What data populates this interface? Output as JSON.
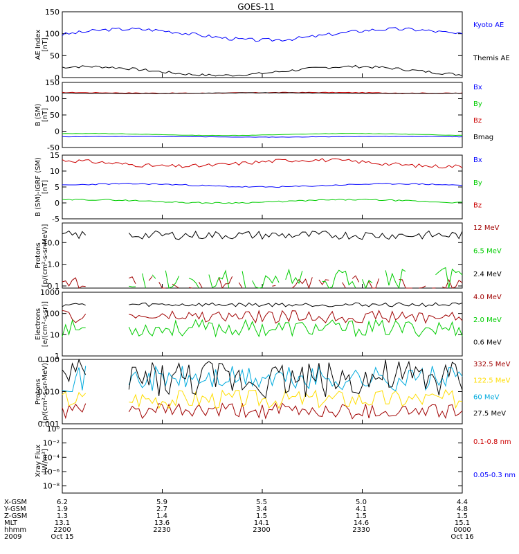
{
  "title": "GOES-11",
  "colors": {
    "black": "#000000",
    "blue": "#0000ff",
    "red": "#cc0000",
    "darkred": "#a00000",
    "green": "#00cc00",
    "cyan": "#00aadd",
    "yellow": "#ffdd00"
  },
  "chart_data": [
    {
      "type": "line",
      "panel": "ae",
      "ylabel": [
        "AE Index",
        "[nT]"
      ],
      "ylim": [
        0,
        150
      ],
      "yticks": [
        0,
        50,
        100,
        150
      ],
      "ytick_labels": [
        "0",
        "50",
        "100",
        "150"
      ],
      "series": [
        {
          "name": "Kyoto AE",
          "color": "#0000ff",
          "base": 98,
          "amp": 25,
          "noise": 4,
          "seed": 3,
          "label_ratio": 0.0
        },
        {
          "name": "Themis AE",
          "color": "#000000",
          "base": 15,
          "amp": 20,
          "noise": 3,
          "seed": 7,
          "label_ratio": 0.0
        }
      ]
    },
    {
      "type": "line",
      "panel": "bsm",
      "ylabel": [
        "B (SM)",
        "[nT]"
      ],
      "ylim": [
        -50,
        150
      ],
      "yticks": [
        -50,
        0,
        50,
        100,
        150
      ],
      "ytick_labels": [
        "-50",
        "0",
        "50",
        "100",
        "150"
      ],
      "series": [
        {
          "name": "Bx",
          "color": "#0000ff",
          "base": -17,
          "amp": 2,
          "noise": 0.5,
          "seed": 11
        },
        {
          "name": "By",
          "color": "#00cc00",
          "base": -10,
          "amp": 6,
          "noise": 0.5,
          "seed": 13
        },
        {
          "name": "Bz",
          "color": "#cc0000",
          "base": 118,
          "amp": 2,
          "noise": 1,
          "seed": 17
        },
        {
          "name": "Bmag",
          "color": "#000000",
          "base": 117,
          "amp": 2,
          "noise": 0.5,
          "seed": 19
        }
      ]
    },
    {
      "type": "line",
      "panel": "bigrf",
      "ylabel": [
        "B (SM)-IGRF (SM)",
        "[nT]"
      ],
      "ylim": [
        -5,
        15
      ],
      "yticks": [
        -5,
        0,
        5,
        10,
        15
      ],
      "ytick_labels": [
        "-5",
        "0",
        "5",
        "10",
        "15"
      ],
      "series": [
        {
          "name": "Bx",
          "color": "#0000ff",
          "base": 5.5,
          "amp": 1,
          "noise": 0.2,
          "seed": 23
        },
        {
          "name": "By",
          "color": "#00cc00",
          "base": 0.5,
          "amp": 1,
          "noise": 0.2,
          "seed": 29
        },
        {
          "name": "Bz",
          "color": "#cc0000",
          "base": 12.5,
          "amp": 2,
          "noise": 0.6,
          "seed": 31
        }
      ]
    },
    {
      "type": "line",
      "panel": "protons",
      "log": true,
      "ylabel": [
        "Protons",
        "[p/(cm²-s-sr-MeV)]"
      ],
      "ylim": [
        0.08,
        80
      ],
      "yticks": [
        0.1,
        1,
        10
      ],
      "ytick_labels": [
        "0.1",
        "1.0",
        "10.0"
      ],
      "series": [
        {
          "name": "12 MeV",
          "color": "#a00000",
          "base": 0.12,
          "amp": 0,
          "noise": 0.4,
          "seed": 37,
          "gaps": true
        },
        {
          "name": "6.5 MeV",
          "color": "#00cc00",
          "base": 0.18,
          "amp": 0,
          "noise": 0.6,
          "seed": 41,
          "gaps": true
        },
        {
          "name": "2.4 MeV",
          "color": "#000000",
          "base": 22,
          "amp": 0,
          "noise": 0.2,
          "seed": 43
        }
      ]
    },
    {
      "type": "line",
      "panel": "electrons",
      "log": true,
      "ylabel": [
        "Electrons",
        "[e/(cm²-s-sr)]"
      ],
      "ylim": [
        1,
        1000
      ],
      "yticks": [
        1,
        10,
        100,
        1000
      ],
      "ytick_labels": [
        "1",
        "10",
        "100",
        "1000"
      ],
      "series": [
        {
          "name": "4.0 MeV",
          "color": "#a00000",
          "base": 70,
          "amp": 0,
          "noise": 0.3,
          "seed": 47
        },
        {
          "name": "2.0 MeV",
          "color": "#00cc00",
          "base": 20,
          "amp": 0,
          "noise": 0.4,
          "seed": 53
        },
        {
          "name": "0.6 MeV",
          "color": "#000000",
          "base": 260,
          "amp": 0,
          "noise": 0.1,
          "seed": 59
        }
      ]
    },
    {
      "type": "line",
      "panel": "hep",
      "log": true,
      "ylabel": [
        "Protons",
        "[p/(cm²-s-sr-MeV)]"
      ],
      "ylim": [
        0.001,
        0.1
      ],
      "yticks": [
        0.001,
        0.01,
        0.1
      ],
      "ytick_labels": [
        "0.001",
        "0.010",
        "0.100"
      ],
      "series": [
        {
          "name": "332.5 MeV",
          "color": "#a00000",
          "base": 0.0025,
          "amp": 0,
          "noise": 0.25,
          "seed": 61
        },
        {
          "name": "122.5 MeV",
          "color": "#ffdd00",
          "base": 0.006,
          "amp": 0,
          "noise": 0.3,
          "seed": 67
        },
        {
          "name": "60 MeV",
          "color": "#00aadd",
          "base": 0.025,
          "amp": 0,
          "noise": 0.4,
          "seed": 71
        },
        {
          "name": "27.5 MeV",
          "color": "#000000",
          "base": 0.025,
          "amp": 0,
          "noise": 0.6,
          "seed": 73
        }
      ]
    },
    {
      "type": "line",
      "panel": "xray",
      "log": true,
      "ylabel": [
        "Xray Flux",
        "[W/m²]"
      ],
      "ylim": [
        1e-09,
        1
      ],
      "yticks": [
        1e-08,
        1e-06,
        0.0001,
        0.01,
        1
      ],
      "ytick_labels": [
        "10⁻⁸",
        "10⁻⁶",
        "10⁻⁴",
        "10⁻²",
        "10⁰"
      ],
      "series": [
        {
          "name": "0.1-0.8 nm",
          "color": "#cc0000",
          "empty": true
        },
        {
          "name": "0.05-0.3 nm",
          "color": "#0000ff",
          "empty": true
        }
      ]
    }
  ],
  "xaxis": {
    "rows": [
      {
        "label": "X-GSM",
        "values": [
          "6.2",
          "5.9",
          "5.5",
          "5.0",
          "4.4"
        ]
      },
      {
        "label": "Y-GSM",
        "values": [
          "1.9",
          "2.7",
          "3.4",
          "4.1",
          "4.8"
        ]
      },
      {
        "label": "Z-GSM",
        "values": [
          "1.3",
          "1.4",
          "1.5",
          "1.5",
          "1.5"
        ]
      },
      {
        "label": "MLT",
        "values": [
          "13.1",
          "13.6",
          "14.1",
          "14.6",
          "15.1"
        ]
      },
      {
        "label": "hhmm",
        "values": [
          "2200",
          "2230",
          "2300",
          "2330",
          "0000"
        ]
      },
      {
        "label": "2009",
        "values": [
          "Oct 15",
          "",
          "",
          "",
          "Oct 16"
        ]
      }
    ]
  }
}
